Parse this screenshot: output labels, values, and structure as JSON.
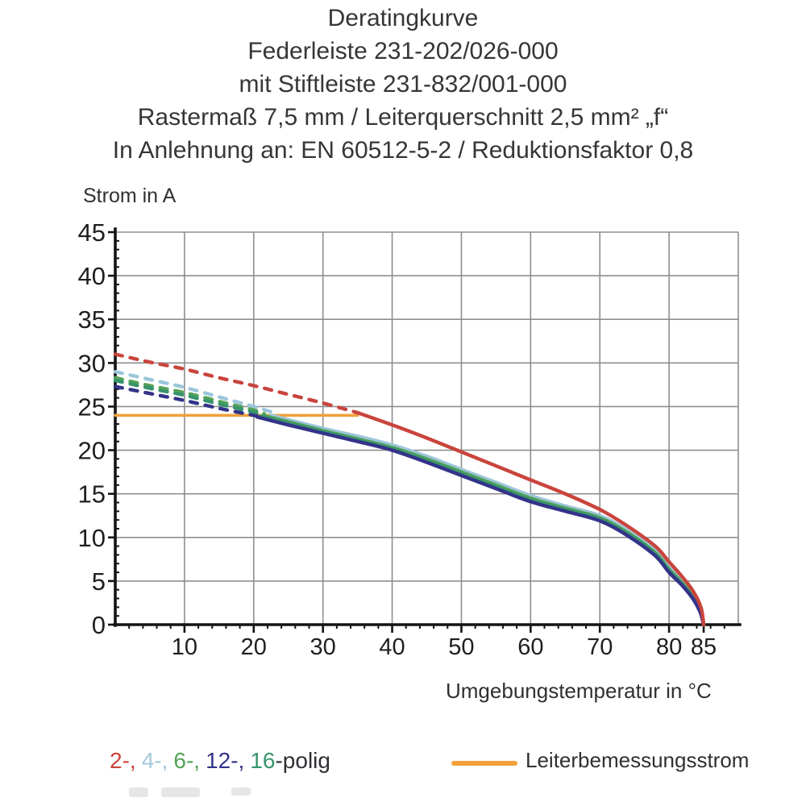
{
  "header": {
    "lines": [
      "Deratingkurve",
      "Federleiste 231-202/026-000",
      "mit Stiftleiste 231-832/001-000",
      "Rastermaß 7,5 mm / Leiterquerschnitt 2,5 mm² „f“",
      "In Anlehnung an: EN 60512-5-2 / Reduktionsfaktor 0,8"
    ]
  },
  "legend": {
    "pole_items": [
      {
        "text": "2-,",
        "color": "#c9443c"
      },
      {
        "text": "4-,",
        "color": "#a3c9dc"
      },
      {
        "text": "6-,",
        "color": "#55a257"
      },
      {
        "text": "12-,",
        "color": "#333389"
      },
      {
        "text": "16",
        "color": "#37946c"
      }
    ],
    "pole_suffix": "-polig",
    "suffix_color": "#2e2e34",
    "rated_label": "Leiterbemessungsstrom",
    "rated_color": "#f1a13a"
  },
  "chart_data": {
    "type": "line",
    "title": "Deratingkurve",
    "x_axis": {
      "label": "Umgebungstemperatur in °C",
      "range": [
        0,
        90
      ],
      "ticks": [
        10,
        20,
        30,
        40,
        50,
        60,
        70,
        80,
        85
      ],
      "minor_tick_step": 2,
      "gridline_step": 10
    },
    "y_axis": {
      "label": "Strom in A",
      "range": [
        0,
        45
      ],
      "ticks": [
        0,
        5,
        10,
        15,
        20,
        25,
        30,
        35,
        40,
        45
      ],
      "minor_tick_step": 1,
      "gridline_step": 5
    },
    "grid_color": "#8f8f8f",
    "axis_color": "#141414",
    "tick_label_color": "#1f1f1f",
    "series": [
      {
        "name": "2-polig",
        "color": "#c9443c",
        "dashed_points": [
          [
            0,
            31
          ],
          [
            5,
            30.1
          ],
          [
            10,
            29.3
          ],
          [
            15,
            28.3
          ],
          [
            20,
            27.4
          ],
          [
            25,
            26.4
          ],
          [
            30,
            25.4
          ],
          [
            35,
            24.3
          ]
        ],
        "solid_points": [
          [
            35,
            24.3
          ],
          [
            40,
            22.9
          ],
          [
            45,
            21.4
          ],
          [
            50,
            19.8
          ],
          [
            55,
            18.2
          ],
          [
            60,
            16.6
          ],
          [
            65,
            15.0
          ],
          [
            70,
            13.2
          ],
          [
            74,
            11.3
          ],
          [
            78,
            9.0
          ],
          [
            80,
            7.2
          ],
          [
            82,
            5.4
          ],
          [
            83.5,
            3.8
          ],
          [
            84.6,
            2.0
          ],
          [
            85,
            0
          ]
        ]
      },
      {
        "name": "4-polig",
        "color": "#9cc6da",
        "dashed_points": [
          [
            0,
            29
          ],
          [
            5,
            28.1
          ],
          [
            10,
            27.2
          ],
          [
            15,
            26.1
          ],
          [
            20,
            25.0
          ],
          [
            22.5,
            24.4
          ]
        ],
        "solid_points": [
          [
            22.5,
            24.0
          ],
          [
            25,
            23.5
          ],
          [
            30,
            22.5
          ],
          [
            35,
            21.6
          ],
          [
            40,
            20.6
          ],
          [
            45,
            19.3
          ],
          [
            50,
            17.8
          ],
          [
            55,
            16.3
          ],
          [
            60,
            14.8
          ],
          [
            65,
            13.6
          ],
          [
            70,
            12.5
          ],
          [
            74,
            10.8
          ],
          [
            78,
            8.5
          ],
          [
            80,
            6.6
          ],
          [
            82,
            4.9
          ],
          [
            83.5,
            3.4
          ],
          [
            84.6,
            1.8
          ],
          [
            85,
            0
          ]
        ]
      },
      {
        "name": "6-polig",
        "color": "#55a257",
        "dashed_points": [
          [
            0,
            28.3
          ],
          [
            5,
            27.4
          ],
          [
            10,
            26.6
          ],
          [
            15,
            25.6
          ],
          [
            20,
            24.6
          ],
          [
            21.5,
            24.2
          ]
        ],
        "solid_points": [
          [
            21.5,
            23.95
          ],
          [
            25,
            23.25
          ],
          [
            30,
            22.25
          ],
          [
            35,
            21.3
          ],
          [
            40,
            20.3
          ],
          [
            45,
            19.0
          ],
          [
            50,
            17.5
          ],
          [
            55,
            16.0
          ],
          [
            60,
            14.5
          ],
          [
            65,
            13.35
          ],
          [
            70,
            12.25
          ],
          [
            74,
            10.55
          ],
          [
            78,
            8.25
          ],
          [
            80,
            6.35
          ],
          [
            82,
            4.7
          ],
          [
            83.5,
            3.2
          ],
          [
            84.6,
            1.7
          ],
          [
            85,
            0
          ]
        ]
      },
      {
        "name": "16-polig",
        "color": "#37946c",
        "dashed_points": [
          [
            0,
            28.0
          ],
          [
            5,
            27.1
          ],
          [
            10,
            26.3
          ],
          [
            15,
            25.3
          ],
          [
            20,
            24.35
          ],
          [
            21,
            24.1
          ]
        ],
        "solid_points": [
          [
            21,
            23.9
          ],
          [
            25,
            23.1
          ],
          [
            30,
            22.1
          ],
          [
            35,
            21.15
          ],
          [
            40,
            20.15
          ],
          [
            45,
            18.8
          ],
          [
            50,
            17.3
          ],
          [
            55,
            15.8
          ],
          [
            60,
            14.3
          ],
          [
            65,
            13.2
          ],
          [
            70,
            12.1
          ],
          [
            74,
            10.4
          ],
          [
            78,
            8.1
          ],
          [
            80,
            6.2
          ],
          [
            82,
            4.55
          ],
          [
            83.5,
            3.05
          ],
          [
            84.5,
            1.55
          ],
          [
            85,
            0
          ]
        ]
      },
      {
        "name": "12-polig",
        "color": "#333389",
        "dashed_points": [
          [
            0,
            27.3
          ],
          [
            5,
            26.5
          ],
          [
            10,
            25.7
          ],
          [
            15,
            24.8
          ],
          [
            20,
            24.0
          ],
          [
            20.5,
            23.9
          ]
        ],
        "solid_points": [
          [
            20.5,
            23.8
          ],
          [
            25,
            22.9
          ],
          [
            30,
            21.95
          ],
          [
            35,
            21.0
          ],
          [
            40,
            20.0
          ],
          [
            45,
            18.6
          ],
          [
            50,
            17.1
          ],
          [
            55,
            15.6
          ],
          [
            60,
            14.1
          ],
          [
            65,
            13.0
          ],
          [
            70,
            11.9
          ],
          [
            74,
            10.2
          ],
          [
            78,
            7.9
          ],
          [
            80,
            6.0
          ],
          [
            82,
            4.4
          ],
          [
            83.5,
            2.9
          ],
          [
            84.5,
            1.4
          ],
          [
            85,
            0
          ]
        ]
      }
    ],
    "rated_line": {
      "name": "Leiterbemessungsstrom",
      "color": "#f1a13a",
      "current_a": 24,
      "temp_range": [
        0,
        35
      ]
    }
  }
}
